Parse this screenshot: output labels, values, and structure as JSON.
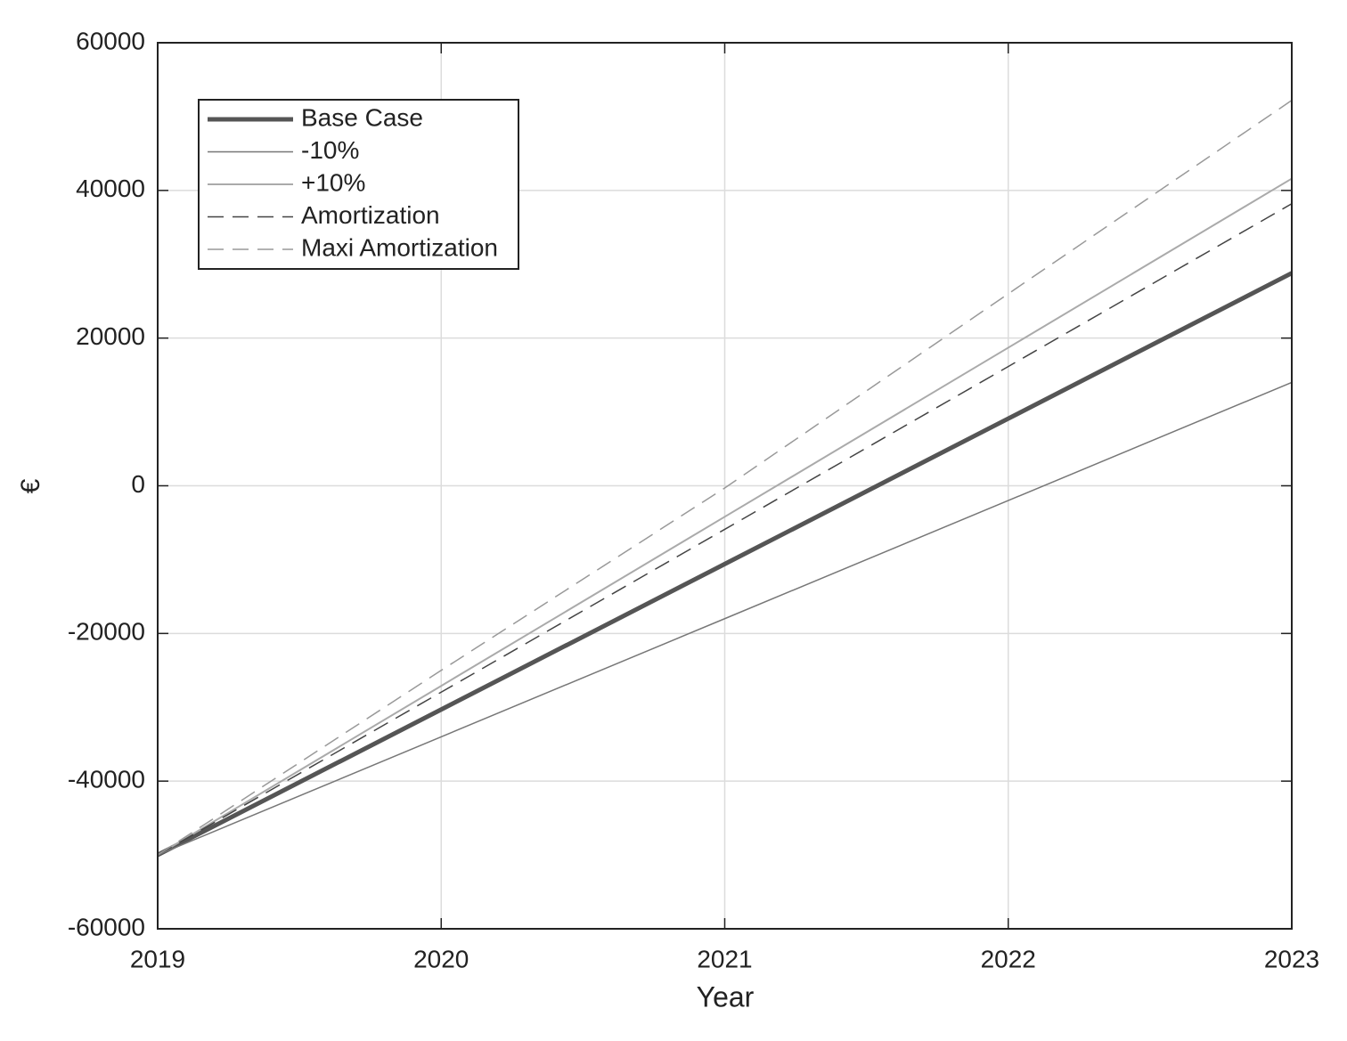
{
  "chart_data": {
    "type": "line",
    "x": [
      2019,
      2020,
      2021,
      2022,
      2023
    ],
    "xlabel": "Year",
    "ylabel": "€",
    "series": [
      {
        "name": "Base Case",
        "color": "#555555",
        "width": 5,
        "dash": false,
        "values": [
          -50000,
          -30300,
          -10600,
          9100,
          28800
        ]
      },
      {
        "name": "-10%",
        "color": "#777777",
        "width": 1.5,
        "dash": false,
        "values": [
          -50000,
          -34000,
          -18000,
          -2000,
          14000
        ]
      },
      {
        "name": "+10%",
        "color": "#aaaaaa",
        "width": 2,
        "dash": false,
        "values": [
          -50000,
          -27100,
          -4200,
          18700,
          41600
        ]
      },
      {
        "name": "Amortization",
        "color": "#444444",
        "width": 1.5,
        "dash": true,
        "values": [
          -50000,
          -27950,
          -5900,
          16150,
          38200
        ]
      },
      {
        "name": "Maxi Amortization",
        "color": "#999999",
        "width": 1.5,
        "dash": true,
        "values": [
          -50000,
          -25000,
          -300,
          26000,
          52200
        ]
      }
    ],
    "xlim": [
      2019,
      2023
    ],
    "xticks": [
      2019,
      2020,
      2021,
      2022,
      2023
    ],
    "ylim": [
      -60000,
      60000
    ],
    "yticks": [
      -60000,
      -40000,
      -20000,
      0,
      20000,
      40000,
      60000
    ],
    "grid": true,
    "legend": "upper-left"
  }
}
